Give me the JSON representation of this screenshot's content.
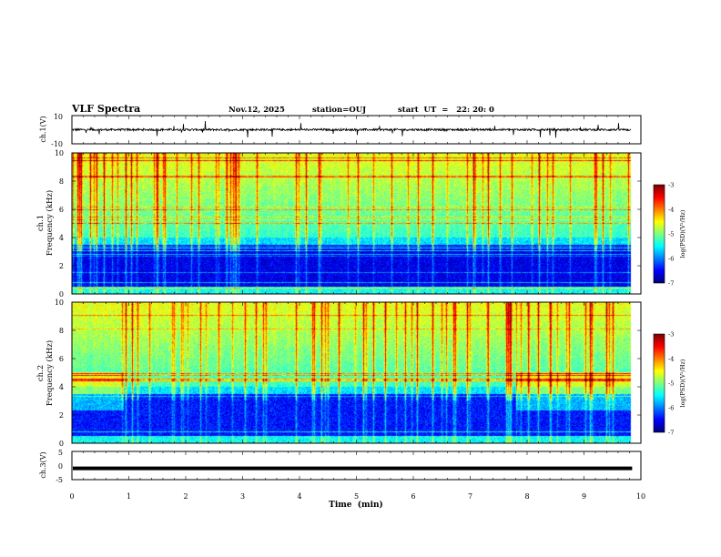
{
  "header": {
    "title": "VLF Spectra",
    "date": "Nov.12, 2025",
    "station": "station=OUJ",
    "start": "start  UT  =   22: 20: 0"
  },
  "chart_data": [
    {
      "type": "line",
      "panel": "waveform-ch1",
      "ylabel": "ch.1(V)",
      "ylim": [
        -10,
        10
      ],
      "yticks": [
        "10",
        "-10"
      ],
      "x_range_min": [
        0,
        9.83
      ],
      "baseline_v": 0,
      "typical_amplitude_v": 1.5
    },
    {
      "type": "heatmap",
      "panel": "spectrogram-ch1",
      "ylabel": "ch.1\nFrequency  (kHz)",
      "ylim": [
        0,
        10
      ],
      "yticks": [
        "0",
        "2",
        "4",
        "6",
        "8",
        "10"
      ],
      "x_range_min": [
        0,
        9.83
      ],
      "colorbar": {
        "label": "log(PSD)(V²/Hz)",
        "range": [
          -7,
          -3
        ],
        "ticks": [
          "-3",
          "-4",
          "-5",
          "-6",
          "-7"
        ]
      },
      "quiet_band_khz": [
        0.5,
        3.5
      ]
    },
    {
      "type": "heatmap",
      "panel": "spectrogram-ch2",
      "ylabel": "ch.2\nFrequency  (kHz)",
      "ylim": [
        0,
        10
      ],
      "yticks": [
        "0",
        "2",
        "4",
        "6",
        "8",
        "10"
      ],
      "x_range_min": [
        0,
        9.83
      ],
      "colorbar": {
        "label": "log(PSD)(V²/Hz)",
        "range": [
          -7,
          -3
        ],
        "ticks": [
          "-3",
          "-4",
          "-5",
          "-6",
          "-7"
        ]
      },
      "elevated_band_khz": [
        2.3,
        5.0
      ],
      "elevated_intervals_min": [
        [
          0,
          0.9
        ],
        [
          7.8,
          9.83
        ]
      ]
    },
    {
      "type": "line",
      "panel": "waveform-ch3",
      "ylabel": "ch.3(V)",
      "ylim": [
        -5,
        5
      ],
      "yticks": [
        "5",
        "0",
        "-5"
      ],
      "x_range_min": [
        0,
        9.83
      ],
      "level_v": -1
    }
  ],
  "xaxis": {
    "label": "Time  (min)",
    "ticks": [
      "0",
      "1",
      "2",
      "3",
      "4",
      "5",
      "6",
      "7",
      "8",
      "9",
      "10"
    ],
    "range": [
      0,
      10
    ]
  }
}
